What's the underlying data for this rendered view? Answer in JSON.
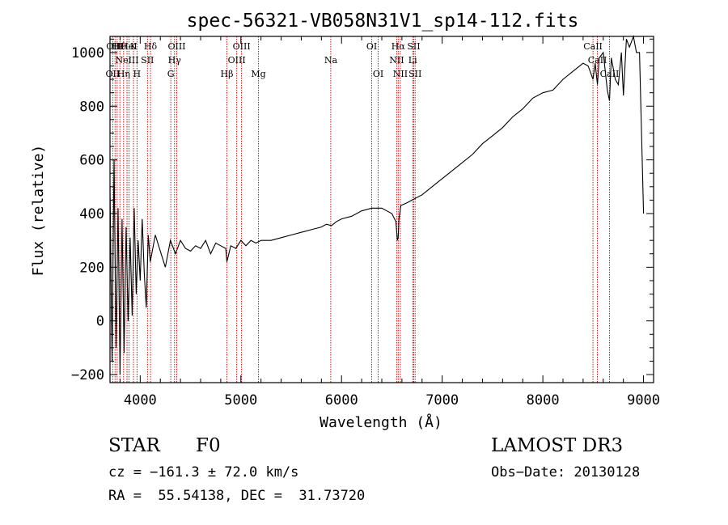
{
  "chart_data": {
    "type": "line",
    "title": "spec-56321-VB058N31V1_sp14-112.fits",
    "xlabel": "Wavelength (Å)",
    "ylabel": "Flux (relative)",
    "xlim": [
      3700,
      9100
    ],
    "ylim": [
      -230,
      1060
    ],
    "x_ticks": [
      4000,
      5000,
      6000,
      7000,
      8000,
      9000
    ],
    "y_ticks": [
      -200,
      0,
      200,
      400,
      600,
      800,
      1000
    ],
    "series": [
      {
        "name": "flux",
        "x": [
          3700,
          3720,
          3740,
          3760,
          3780,
          3800,
          3820,
          3840,
          3860,
          3880,
          3900,
          3920,
          3940,
          3960,
          3980,
          4000,
          4020,
          4040,
          4060,
          4080,
          4100,
          4150,
          4200,
          4250,
          4300,
          4350,
          4400,
          4450,
          4500,
          4550,
          4600,
          4650,
          4700,
          4750,
          4800,
          4850,
          4861,
          4900,
          4950,
          5000,
          5050,
          5100,
          5150,
          5200,
          5300,
          5400,
          5500,
          5600,
          5700,
          5800,
          5850,
          5900,
          5950,
          6000,
          6100,
          6200,
          6300,
          6400,
          6450,
          6500,
          6540,
          6555,
          6563,
          6570,
          6590,
          6650,
          6700,
          6800,
          6900,
          7000,
          7100,
          7200,
          7300,
          7400,
          7500,
          7600,
          7700,
          7800,
          7900,
          8000,
          8100,
          8200,
          8300,
          8400,
          8450,
          8498,
          8520,
          8542,
          8560,
          8600,
          8640,
          8662,
          8680,
          8720,
          8750,
          8780,
          8800,
          8830,
          8860,
          8900,
          8930,
          8960,
          9000
        ],
        "y": [
          500,
          -150,
          600,
          -100,
          420,
          -200,
          380,
          -120,
          350,
          0,
          310,
          20,
          420,
          100,
          300,
          150,
          380,
          180,
          50,
          320,
          220,
          320,
          260,
          200,
          300,
          250,
          300,
          270,
          260,
          280,
          270,
          300,
          250,
          290,
          280,
          270,
          220,
          280,
          270,
          300,
          280,
          300,
          290,
          300,
          300,
          310,
          320,
          330,
          340,
          350,
          360,
          355,
          370,
          380,
          390,
          410,
          420,
          420,
          410,
          400,
          370,
          300,
          310,
          380,
          430,
          440,
          450,
          470,
          500,
          530,
          560,
          590,
          620,
          660,
          690,
          720,
          760,
          790,
          830,
          850,
          860,
          900,
          930,
          960,
          950,
          900,
          960,
          880,
          980,
          1000,
          860,
          820,
          980,
          900,
          880,
          1000,
          840,
          1050,
          1020,
          1060,
          1000,
          1000,
          400
        ]
      }
    ],
    "line_markers": [
      {
        "wl": 3727,
        "row": 3,
        "label": "OII"
      },
      {
        "wl": 3750,
        "row": 1,
        "label": "OIII"
      },
      {
        "wl": 3771,
        "row": 1,
        "label": "HI"
      },
      {
        "wl": 3798,
        "row": 1,
        "label": "Hθ"
      },
      {
        "wl": 3835,
        "row": 3,
        "label": "Hη"
      },
      {
        "wl": 3869,
        "row": 2,
        "label": "NeIII"
      },
      {
        "wl": 3889,
        "row": 1,
        "label": "HeI"
      },
      {
        "wl": 3933,
        "row": 1,
        "label": "K"
      },
      {
        "wl": 3968,
        "row": 3,
        "label": "H"
      },
      {
        "wl": 4072,
        "row": 2,
        "label": "SII"
      },
      {
        "wl": 4102,
        "row": 1,
        "label": "Hδ"
      },
      {
        "wl": 4304,
        "row": 3,
        "label": "G"
      },
      {
        "wl": 4341,
        "row": 2,
        "label": "Hγ"
      },
      {
        "wl": 4363,
        "row": 1,
        "label": "OIII"
      },
      {
        "wl": 4861,
        "row": 3,
        "label": "Hβ"
      },
      {
        "wl": 4959,
        "row": 2,
        "label": "OIII"
      },
      {
        "wl": 5007,
        "row": 1,
        "label": "OIII"
      },
      {
        "wl": 5175,
        "row": 3,
        "label": "Mg"
      },
      {
        "wl": 5893,
        "row": 2,
        "label": "Na"
      },
      {
        "wl": 6300,
        "row": 1,
        "label": "OI"
      },
      {
        "wl": 6364,
        "row": 3,
        "label": "OI"
      },
      {
        "wl": 6548,
        "row": 2,
        "label": "NII"
      },
      {
        "wl": 6563,
        "row": 1,
        "label": "Hα"
      },
      {
        "wl": 6584,
        "row": 3,
        "label": "NII"
      },
      {
        "wl": 6707,
        "row": 2,
        "label": "Li"
      },
      {
        "wl": 6717,
        "row": 1,
        "label": "SII"
      },
      {
        "wl": 6731,
        "row": 3,
        "label": "SII"
      },
      {
        "wl": 8498,
        "row": 1,
        "label": "CaII"
      },
      {
        "wl": 8542,
        "row": 2,
        "label": "CaII"
      },
      {
        "wl": 8662,
        "row": 3,
        "label": "CaII"
      }
    ]
  },
  "info": {
    "class": "STAR",
    "subclass": "F0",
    "survey": "LAMOST DR3",
    "cz": "cz = −161.3 ± 72.0 km/s",
    "obs_date": "Obs−Date: 20130128",
    "coords": "RA =  55.54138, DEC =  31.73720"
  },
  "colors": {
    "marker": "#c00000",
    "line": "#000000"
  }
}
